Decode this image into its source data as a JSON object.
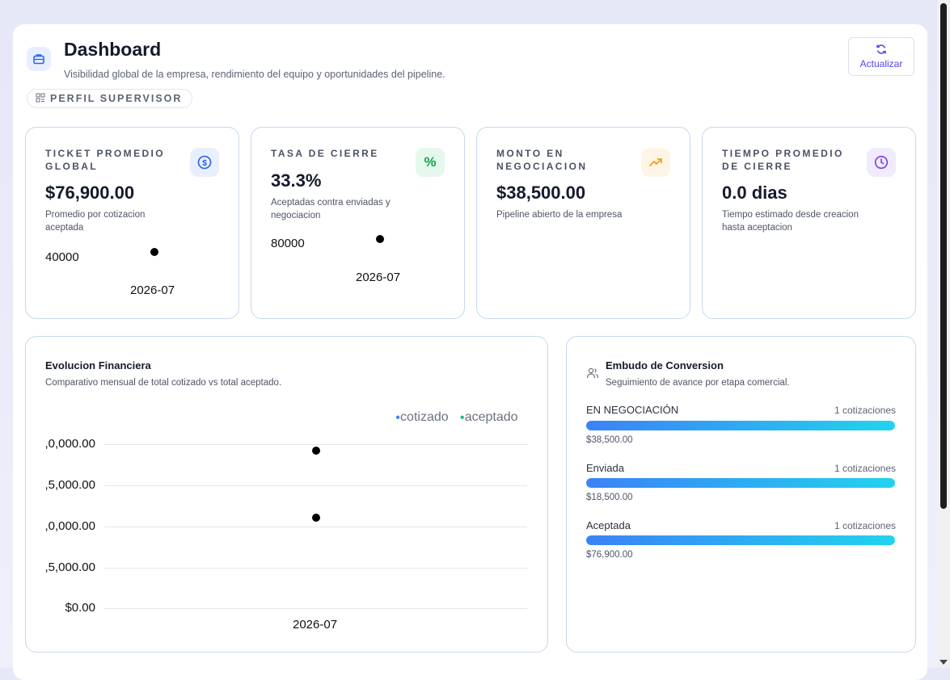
{
  "header": {
    "title": "Dashboard",
    "subtitle": "Visibilidad global de la empresa, rendimiento del equipo y oportunidades del pipeline.",
    "role_badge": "PERFIL SUPERVISOR",
    "refresh_label": "Actualizar",
    "icon": "briefcase-icon"
  },
  "kpis": [
    {
      "label": "TICKET PROMEDIO GLOBAL",
      "value": "$76,900.00",
      "description": "Promedio por cotizacion aceptada",
      "icon": "dollar-icon",
      "icon_color": "#2563eb",
      "icon_bg": "#e8efff",
      "mini_chart": {
        "y_tick": "40000",
        "x_tick": "2026-07"
      }
    },
    {
      "label": "TASA DE CIERRE",
      "value": "33.3%",
      "description": "Aceptadas contra enviadas y negociacion",
      "icon": "percent-icon",
      "icon_color": "#16a34a",
      "icon_bg": "#e6f8ee",
      "mini_chart": {
        "y_tick": "80000",
        "x_tick": "2026-07"
      }
    },
    {
      "label": "MONTO EN NEGOCIACION",
      "value": "$38,500.00",
      "description": "Pipeline abierto de la empresa",
      "icon": "trending-up-icon",
      "icon_color": "#f59e0b",
      "icon_bg": "#fff5e6"
    },
    {
      "label": "TIEMPO PROMEDIO DE CIERRE",
      "value": "0.0 dias",
      "description": "Tiempo estimado desde creacion hasta aceptacion",
      "icon": "clock-icon",
      "icon_color": "#7c3aed",
      "icon_bg": "#f1ebff"
    }
  ],
  "financial": {
    "title": "Evolucion Financiera",
    "subtitle": "Comparativo mensual de total cotizado vs total aceptado.",
    "legend": [
      {
        "label": "cotizado",
        "color": "#3b82f6"
      },
      {
        "label": "aceptado",
        "color": "#10b981"
      }
    ],
    "y_ticks": [
      ",0,000.00",
      ",5,000.00",
      ",0,000.00",
      ",5,000.00",
      "$0.00"
    ],
    "x_tick": "2026-07"
  },
  "funnel": {
    "title": "Embudo de Conversion",
    "subtitle": "Seguimiento de avance por etapa comercial.",
    "icon": "users-icon",
    "stages": [
      {
        "label": "EN NEGOCIACIÓN",
        "count": "1 cotizaciones",
        "amount": "$38,500.00",
        "fill": 1.0
      },
      {
        "label": "Enviada",
        "count": "1 cotizaciones",
        "amount": "$18,500.00",
        "fill": 1.0
      },
      {
        "label": "Aceptada",
        "count": "1 cotizaciones",
        "amount": "$76,900.00",
        "fill": 1.0
      }
    ]
  }
}
